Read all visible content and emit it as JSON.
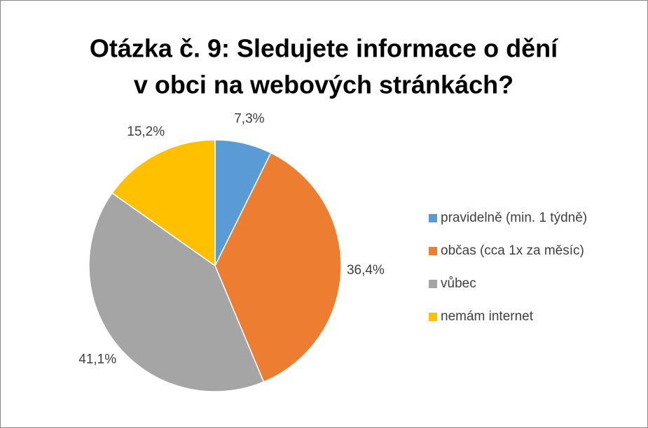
{
  "chart_data": {
    "type": "pie",
    "title": [
      "Otázka č. 9: Sledujete informace o dění",
      "v obci na webových stránkách?"
    ],
    "categories": [
      "pravidelně (min. 1 týdně)",
      "občas (cca 1x za měsíc)",
      "vůbec",
      "nemám internet"
    ],
    "values": [
      7.3,
      36.4,
      41.1,
      15.2
    ],
    "value_labels": [
      "7,3%",
      "36,4%",
      "41,1%",
      "15,2%"
    ],
    "colors": [
      "#5b9bd5",
      "#ed7d31",
      "#a5a5a5",
      "#ffc000"
    ],
    "legend": "right"
  }
}
